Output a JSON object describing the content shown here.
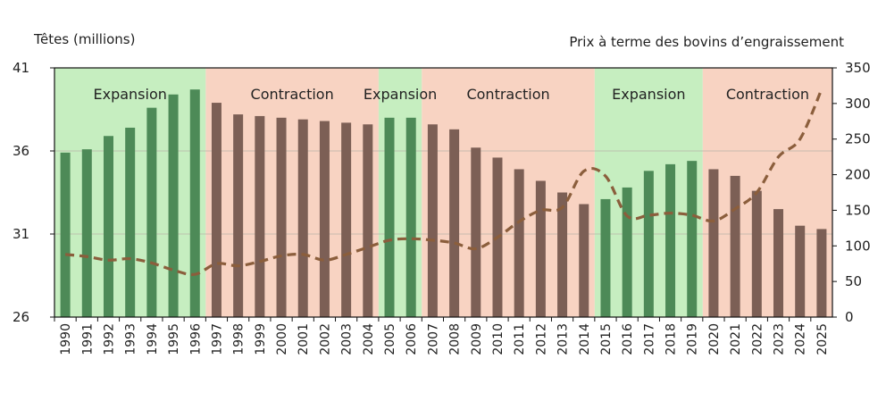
{
  "chart_data": {
    "type": "bar",
    "title": "",
    "left_axis_label": "Têtes (millions)",
    "right_axis_label": "Prix à terme des bovins d’engraissement",
    "ylim_left": [
      26,
      41
    ],
    "yticks_left": [
      "26",
      "31",
      "36",
      "41"
    ],
    "ylim_right": [
      0,
      350
    ],
    "yticks_right": [
      "0",
      "50",
      "100",
      "150",
      "200",
      "250",
      "300",
      "350"
    ],
    "categories": [
      "1990",
      "1991",
      "1992",
      "1993",
      "1994",
      "1995",
      "1996",
      "1997",
      "1998",
      "1999",
      "2000",
      "2001",
      "2002",
      "2003",
      "2004",
      "2005",
      "2006",
      "2007",
      "2008",
      "2009",
      "2010",
      "2011",
      "2012",
      "2013",
      "2014",
      "2015",
      "2016",
      "2017",
      "2018",
      "2019",
      "2020",
      "2021",
      "2022",
      "2023",
      "2024",
      "2025"
    ],
    "series": [
      {
        "name": "Têtes (millions)",
        "axis": "left",
        "kind": "bar",
        "values": [
          35.9,
          36.1,
          36.9,
          37.4,
          38.6,
          39.4,
          39.7,
          38.9,
          38.2,
          38.1,
          38.0,
          37.9,
          37.8,
          37.7,
          37.6,
          38.0,
          38.0,
          37.6,
          37.3,
          36.2,
          35.6,
          34.9,
          34.2,
          33.5,
          32.8,
          33.1,
          33.8,
          34.8,
          35.2,
          35.4,
          34.9,
          34.5,
          33.6,
          32.5,
          31.5,
          31.3
        ],
        "colors": {
          "expansion": "#4d8a57",
          "contraction": "#7c5f55"
        }
      },
      {
        "name": "Prix à terme des bovins d’engraissement",
        "axis": "right",
        "kind": "line",
        "style": "dashed",
        "color": "#8b5e3c",
        "values": [
          88,
          85,
          80,
          82,
          76,
          66,
          60,
          75,
          72,
          78,
          86,
          88,
          80,
          88,
          98,
          108,
          110,
          108,
          104,
          96,
          112,
          134,
          150,
          154,
          205,
          198,
          142,
          143,
          146,
          143,
          135,
          152,
          175,
          225,
          250,
          320
        ]
      }
    ],
    "phases": [
      {
        "label": "Expansion",
        "type": "expansion",
        "start": "1990",
        "end": "1996"
      },
      {
        "label": "Contraction",
        "type": "contraction",
        "start": "1997",
        "end": "2004"
      },
      {
        "label": "Expansion",
        "type": "expansion",
        "start": "2005",
        "end": "2006"
      },
      {
        "label": "Contraction",
        "type": "contraction",
        "start": "2007",
        "end": "2014"
      },
      {
        "label": "Expansion",
        "type": "expansion",
        "start": "2015",
        "end": "2019"
      },
      {
        "label": "Contraction",
        "type": "contraction",
        "start": "2020",
        "end": "2025"
      }
    ],
    "phase_colors": {
      "expansion": "#c6eec0",
      "contraction": "#f8d3c2"
    },
    "gridlines": true
  }
}
